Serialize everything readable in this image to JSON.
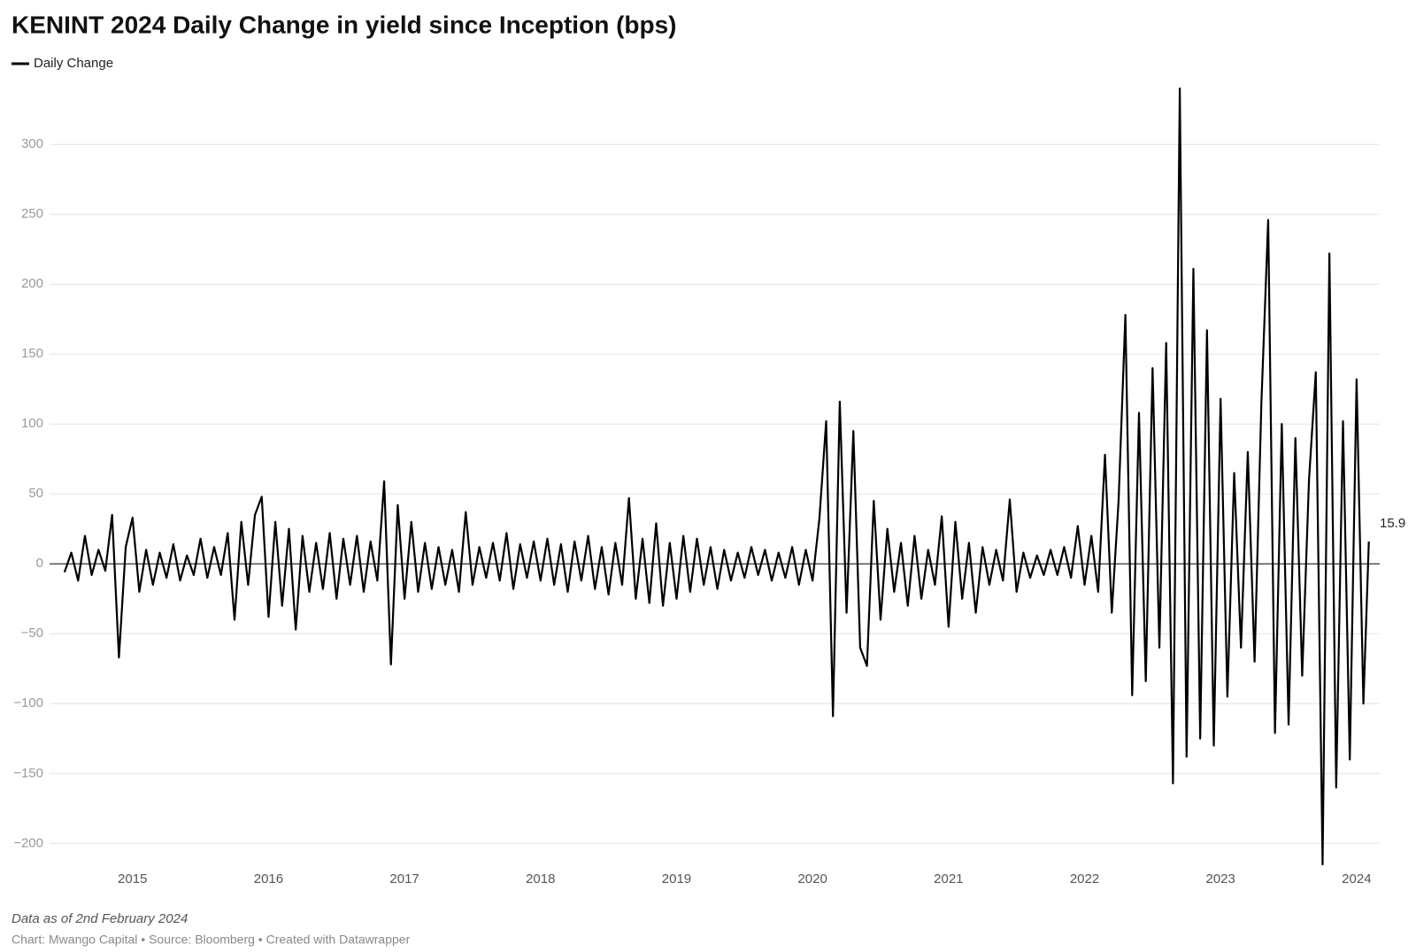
{
  "chart_data": {
    "type": "line",
    "title": "KENINT 2024 Daily Change in yield since Inception (bps)",
    "notes": "Data as of 2nd February 2024",
    "source": "Chart: Mwango Capital • Source: Bloomberg • Created with Datawrapper",
    "xlim": [
      2014.39,
      2024.17
    ],
    "xticks": [
      2015,
      2016,
      2017,
      2018,
      2019,
      2020,
      2021,
      2022,
      2023,
      2024
    ],
    "ylim": [
      -215,
      340
    ],
    "yticks": [
      {
        "value": -200,
        "label": "−200"
      },
      {
        "value": -150,
        "label": "−150"
      },
      {
        "value": -100,
        "label": "−100"
      },
      {
        "value": -50,
        "label": "−50"
      },
      0,
      50,
      100,
      150,
      200,
      250,
      300
    ],
    "grid": true,
    "x": [
      2014.5,
      2014.55,
      2014.6,
      2014.65,
      2014.7,
      2014.75,
      2014.8,
      2014.85,
      2014.9,
      2014.95,
      2015,
      2015.05,
      2015.1,
      2015.15,
      2015.2,
      2015.25,
      2015.3,
      2015.35,
      2015.4,
      2015.45,
      2015.5,
      2015.55,
      2015.6,
      2015.65,
      2015.7,
      2015.75,
      2015.8,
      2015.85,
      2015.9,
      2015.95,
      2016,
      2016.05,
      2016.1,
      2016.15,
      2016.2,
      2016.25,
      2016.3,
      2016.35,
      2016.4,
      2016.45,
      2016.5,
      2016.55,
      2016.6,
      2016.65,
      2016.7,
      2016.75,
      2016.8,
      2016.85,
      2016.9,
      2016.95,
      2017,
      2017.05,
      2017.1,
      2017.15,
      2017.2,
      2017.25,
      2017.3,
      2017.35,
      2017.4,
      2017.45,
      2017.5,
      2017.55,
      2017.6,
      2017.65,
      2017.7,
      2017.75,
      2017.8,
      2017.85,
      2017.9,
      2017.95,
      2018,
      2018.05,
      2018.1,
      2018.15,
      2018.2,
      2018.25,
      2018.3,
      2018.35,
      2018.4,
      2018.45,
      2018.5,
      2018.55,
      2018.6,
      2018.65,
      2018.7,
      2018.75,
      2018.8,
      2018.85,
      2018.9,
      2018.95,
      2019,
      2019.05,
      2019.1,
      2019.15,
      2019.2,
      2019.25,
      2019.3,
      2019.35,
      2019.4,
      2019.45,
      2019.5,
      2019.55,
      2019.6,
      2019.65,
      2019.7,
      2019.75,
      2019.8,
      2019.85,
      2019.9,
      2019.95,
      2020,
      2020.05,
      2020.1,
      2020.15,
      2020.2,
      2020.25,
      2020.3,
      2020.35,
      2020.4,
      2020.45,
      2020.5,
      2020.55,
      2020.6,
      2020.65,
      2020.7,
      2020.75,
      2020.8,
      2020.85,
      2020.9,
      2020.95,
      2021,
      2021.05,
      2021.1,
      2021.15,
      2021.2,
      2021.25,
      2021.3,
      2021.35,
      2021.4,
      2021.45,
      2021.5,
      2021.55,
      2021.6,
      2021.65,
      2021.7,
      2021.75,
      2021.8,
      2021.85,
      2021.9,
      2021.95,
      2022,
      2022.05,
      2022.1,
      2022.15,
      2022.2,
      2022.25,
      2022.3,
      2022.35,
      2022.4,
      2022.45,
      2022.5,
      2022.55,
      2022.6,
      2022.65,
      2022.7,
      2022.75,
      2022.8,
      2022.85,
      2022.9,
      2022.95,
      2023,
      2023.05,
      2023.1,
      2023.15,
      2023.2,
      2023.25,
      2023.3,
      2023.35,
      2023.4,
      2023.45,
      2023.5,
      2023.55,
      2023.6,
      2023.65,
      2023.7,
      2023.75,
      2023.8,
      2023.85,
      2023.9,
      2023.95,
      2024,
      2024.05,
      2024.09
    ],
    "series": [
      {
        "name": "Daily Change",
        "color": "#000000",
        "values": [
          -6,
          8,
          -12,
          20,
          -8,
          10,
          -5,
          35,
          -67,
          12,
          33,
          -20,
          10,
          -15,
          8,
          -10,
          14,
          -12,
          6,
          -8,
          18,
          -10,
          12,
          -8,
          22,
          -40,
          30,
          -15,
          35,
          48,
          -38,
          30,
          -30,
          25,
          -47,
          20,
          -20,
          15,
          -18,
          22,
          -25,
          18,
          -15,
          20,
          -20,
          16,
          -12,
          59,
          -72,
          42,
          -25,
          30,
          -20,
          15,
          -18,
          12,
          -15,
          10,
          -20,
          37,
          -15,
          12,
          -10,
          15,
          -12,
          22,
          -18,
          14,
          -10,
          16,
          -12,
          18,
          -15,
          14,
          -20,
          16,
          -12,
          20,
          -18,
          12,
          -22,
          15,
          -15,
          47,
          -25,
          18,
          -28,
          29,
          -30,
          15,
          -25,
          20,
          -20,
          18,
          -15,
          12,
          -18,
          10,
          -12,
          8,
          -10,
          12,
          -8,
          10,
          -12,
          8,
          -10,
          12,
          -15,
          10,
          -12,
          32,
          102,
          -109,
          116,
          -35,
          95,
          -60,
          -73,
          45,
          -40,
          25,
          -20,
          15,
          -30,
          20,
          -25,
          10,
          -15,
          34,
          -45,
          30,
          -25,
          15,
          -35,
          12,
          -15,
          10,
          -12,
          46,
          -20,
          8,
          -10,
          6,
          -8,
          10,
          -8,
          12,
          -10,
          27,
          -15,
          20,
          -20,
          78,
          -35,
          45,
          178,
          -94,
          108,
          -84,
          140,
          -60,
          158,
          -157,
          340,
          -138,
          211,
          -125,
          167,
          -130,
          118,
          -95,
          65,
          -60,
          80,
          -70,
          115,
          246,
          -121,
          100,
          -115,
          90,
          -80,
          60,
          137,
          -215,
          222,
          -160,
          102,
          -140,
          132,
          -100,
          15.9
        ]
      }
    ]
  }
}
